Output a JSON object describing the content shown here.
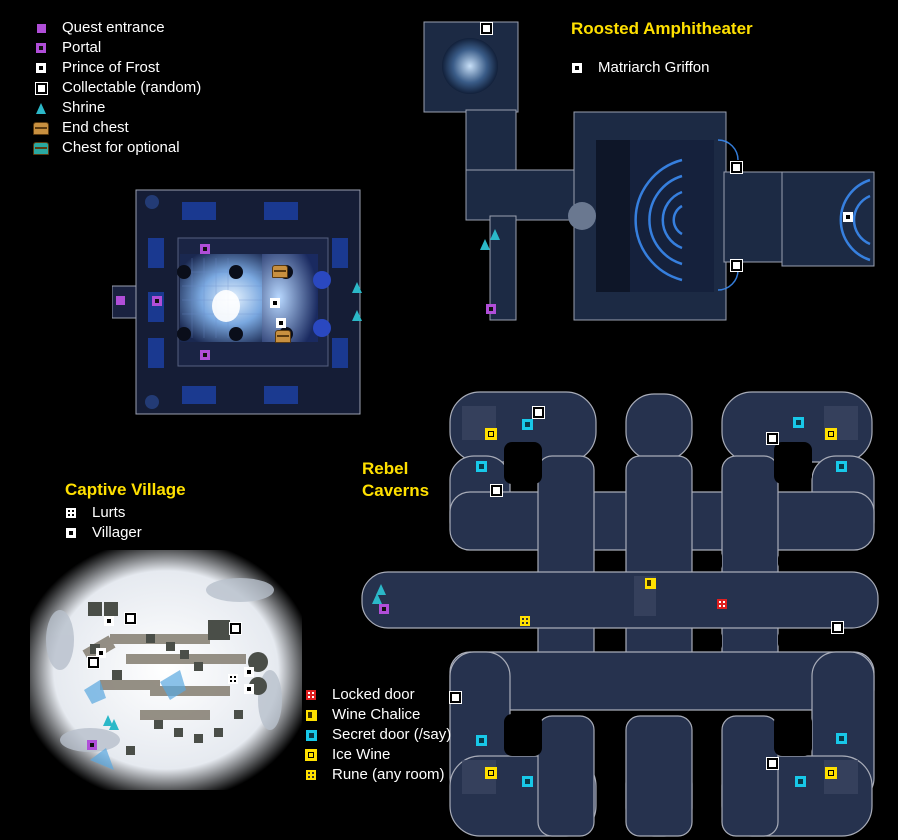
{
  "main_legend": {
    "items": [
      {
        "label": "Quest entrance",
        "icon": "quest-entrance-icon"
      },
      {
        "label": "Portal",
        "icon": "portal-icon"
      },
      {
        "label": "Prince of Frost",
        "icon": "prince-of-frost-icon"
      },
      {
        "label": "Collectable (random)",
        "icon": "collectable-icon"
      },
      {
        "label": "Shrine",
        "icon": "shrine-icon"
      },
      {
        "label": "End chest",
        "icon": "end-chest-icon"
      },
      {
        "label": "Chest for optional",
        "icon": "optional-chest-icon"
      }
    ]
  },
  "amphitheater": {
    "title": "Roosted Amphitheater",
    "legend": [
      {
        "label": "Matriarch Griffon",
        "icon": "matriarch-griffon-icon"
      }
    ]
  },
  "village": {
    "title": "Captive Village",
    "legend": [
      {
        "label": "Lurts",
        "icon": "lurts-icon"
      },
      {
        "label": "Villager",
        "icon": "villager-icon"
      }
    ]
  },
  "caverns": {
    "title_line1": "Rebel",
    "title_line2": "Caverns",
    "legend": [
      {
        "label": "Locked door",
        "icon": "locked-door-icon"
      },
      {
        "label": "Wine Chalice",
        "icon": "wine-chalice-icon"
      },
      {
        "label": "Secret door (/say)",
        "icon": "secret-door-icon"
      },
      {
        "label": "Ice Wine",
        "icon": "ice-wine-icon"
      },
      {
        "label": "Rune (any room)",
        "icon": "rune-icon"
      }
    ]
  },
  "colors": {
    "title": "#ffe000",
    "map_fill": "#1e2a44",
    "map_border": "#a8acb8",
    "glow": "#3a6cd8",
    "purple": "#b04ed8",
    "cyan": "#18c8e8",
    "red": "#e02020"
  }
}
